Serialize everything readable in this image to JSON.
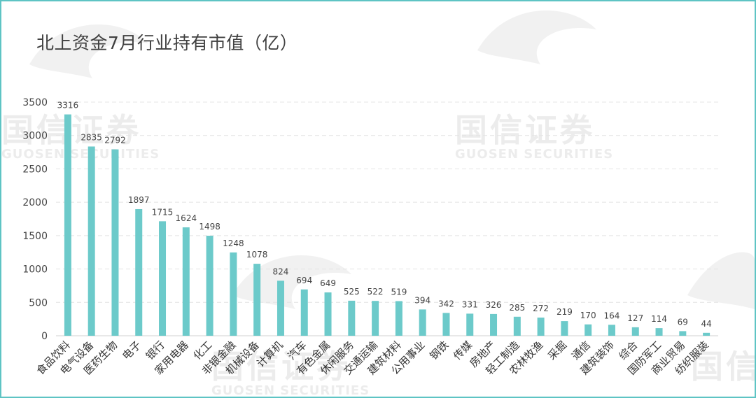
{
  "title": "北上资金7月行业持有市值（亿）",
  "watermark": {
    "cn": "国信证券",
    "en": "GUOSEN SECURITIES"
  },
  "chart_data": {
    "type": "bar",
    "categories": [
      "食品饮料",
      "电气设备",
      "医药生物",
      "电子",
      "银行",
      "家用电器",
      "化工",
      "非银金融",
      "机械设备",
      "计算机",
      "汽车",
      "有色金属",
      "休闲服务",
      "交通运输",
      "建筑材料",
      "公用事业",
      "钢铁",
      "传媒",
      "房地产",
      "轻工制造",
      "农林牧渔",
      "采掘",
      "通信",
      "建筑装饰",
      "综合",
      "国防军工",
      "商业贸易",
      "纺织服装"
    ],
    "values": [
      3316,
      2835,
      2792,
      1897,
      1715,
      1624,
      1498,
      1248,
      1078,
      824,
      694,
      649,
      525,
      522,
      519,
      394,
      342,
      331,
      326,
      285,
      272,
      219,
      170,
      164,
      127,
      114,
      69,
      44
    ],
    "ylim": [
      0,
      3500
    ],
    "yticks": [
      0,
      500,
      1000,
      1500,
      2000,
      2500,
      3000,
      3500
    ],
    "bar_color": "#6ccaca",
    "grid": true,
    "legend": "none"
  }
}
